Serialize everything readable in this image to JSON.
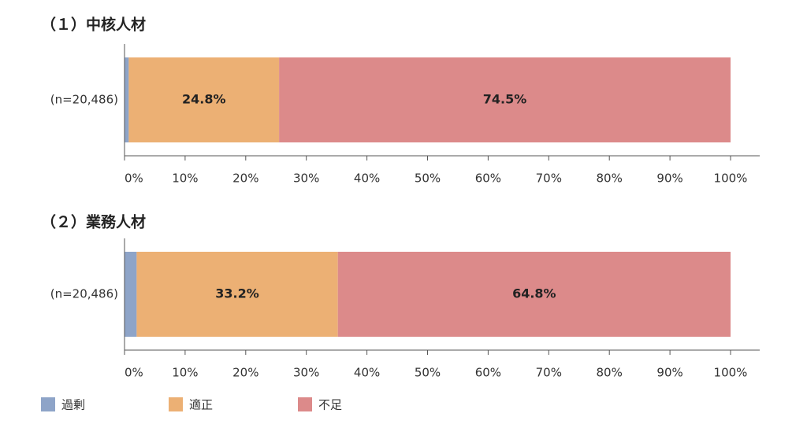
{
  "chart_data": {
    "type": "bar",
    "orientation": "horizontal",
    "stacked": true,
    "xlim": [
      0,
      100
    ],
    "x_ticks": [
      "0%",
      "10%",
      "20%",
      "30%",
      "40%",
      "50%",
      "60%",
      "70%",
      "80%",
      "90%",
      "100%"
    ],
    "legend": {
      "placement": "bottom-left",
      "items": [
        {
          "name": "過剰",
          "color": "#8ea4c8"
        },
        {
          "name": "適正",
          "color": "#ecb074"
        },
        {
          "name": "不足",
          "color": "#dc8a8a"
        }
      ]
    },
    "panels": [
      {
        "title": "（１）中核人材",
        "category": "(n=20,486)",
        "segments": [
          {
            "series": "過剰",
            "value": 0.7,
            "label": ""
          },
          {
            "series": "適正",
            "value": 24.8,
            "label": "24.8%"
          },
          {
            "series": "不足",
            "value": 74.5,
            "label": "74.5%"
          }
        ]
      },
      {
        "title": "（２）業務人材",
        "category": "(n=20,486)",
        "segments": [
          {
            "series": "過剰",
            "value": 2.0,
            "label": ""
          },
          {
            "series": "適正",
            "value": 33.2,
            "label": "33.2%"
          },
          {
            "series": "不足",
            "value": 64.8,
            "label": "64.8%"
          }
        ]
      }
    ]
  }
}
